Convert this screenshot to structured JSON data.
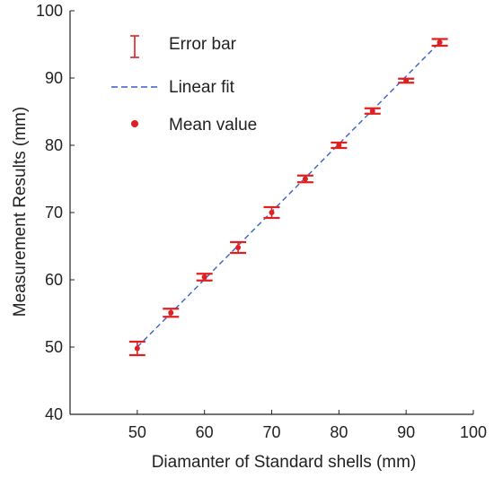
{
  "chart_data": {
    "type": "scatter",
    "xlabel": "Diamanter of Standard shells (mm)",
    "ylabel": "Measurement Results (mm)",
    "xlim": [
      40,
      100
    ],
    "ylim": [
      40,
      100
    ],
    "xticks": [
      50,
      60,
      70,
      80,
      90,
      100
    ],
    "yticks": [
      40,
      50,
      60,
      70,
      80,
      90,
      100
    ],
    "grid": false,
    "legend_position": "top-left",
    "legend": {
      "error_bar": "Error bar",
      "linear_fit": "Linear fit",
      "mean_value": "Mean value"
    },
    "colors": {
      "data": "#e02020",
      "fit": "#3a5fc8",
      "axis": "#222222"
    },
    "points": {
      "x": [
        50,
        55,
        60,
        65,
        70,
        75,
        80,
        85,
        90,
        95
      ],
      "y": [
        49.8,
        55.1,
        60.4,
        64.8,
        70.0,
        75.0,
        80.0,
        85.1,
        89.6,
        95.3
      ],
      "err": [
        1.0,
        0.6,
        0.5,
        0.8,
        0.8,
        0.5,
        0.4,
        0.4,
        0.3,
        0.5
      ]
    },
    "fit": {
      "x": [
        50,
        95
      ],
      "y": [
        50.0,
        95.3
      ]
    }
  }
}
